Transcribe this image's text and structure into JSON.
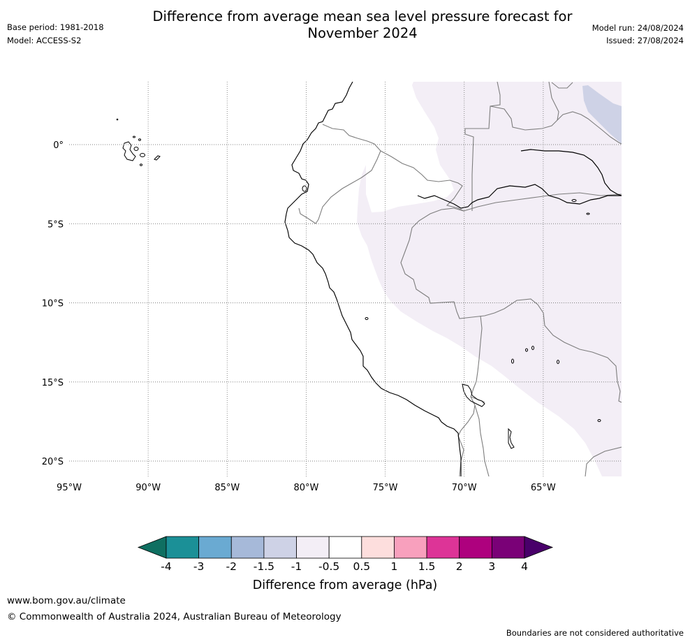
{
  "header": {
    "title_line1": "Difference from average mean sea level pressure forecast for",
    "title_line2": "November 2024",
    "base_period": "Base period: 1981-2018",
    "model": "Model: ACCESS-S2",
    "model_run": "Model run: 24/08/2024",
    "issued": "Issued: 27/08/2024"
  },
  "map": {
    "lon_range": [
      -95,
      -60
    ],
    "lat_range": [
      -21,
      4
    ],
    "lon_ticks": [
      {
        "value": -95,
        "label": "95°W"
      },
      {
        "value": -90,
        "label": "90°W"
      },
      {
        "value": -85,
        "label": "85°W"
      },
      {
        "value": -80,
        "label": "80°W"
      },
      {
        "value": -75,
        "label": "75°W"
      },
      {
        "value": -70,
        "label": "70°W"
      },
      {
        "value": -65,
        "label": "65°W"
      }
    ],
    "lat_ticks": [
      {
        "value": 0,
        "label": "0°"
      },
      {
        "value": -5,
        "label": "5°S"
      },
      {
        "value": -10,
        "label": "10°S"
      },
      {
        "value": -15,
        "label": "15°S"
      },
      {
        "value": -20,
        "label": "20°S"
      }
    ],
    "grid": true,
    "shaded_regions": [
      {
        "category": "-1 to -0.5 hPa",
        "color": "#f3eef6"
      },
      {
        "category": "-1.5 to -1 hPa",
        "color": "#ced2e6"
      }
    ]
  },
  "colorbar": {
    "label": "Difference from average (hPa)",
    "ticks": [
      "-4",
      "-3",
      "-2",
      "-1.5",
      "-1",
      "-0.5",
      "0.5",
      "1",
      "1.5",
      "2",
      "3",
      "4"
    ],
    "colors": [
      "#0f6f61",
      "#1b9097",
      "#6aaad2",
      "#a6b9d9",
      "#ced2e6",
      "#f3eef6",
      "#ffffff",
      "#fddedd",
      "#f8a0bd",
      "#dd3497",
      "#ae017e",
      "#7a0177",
      "#49006a"
    ],
    "extend": "both"
  },
  "footer": {
    "url": "www.bom.gov.au/climate",
    "copyright": "© Commonwealth of Australia 2024, Australian Bureau of Meteorology",
    "disclaimer": "Boundaries are not considered authoritative"
  }
}
